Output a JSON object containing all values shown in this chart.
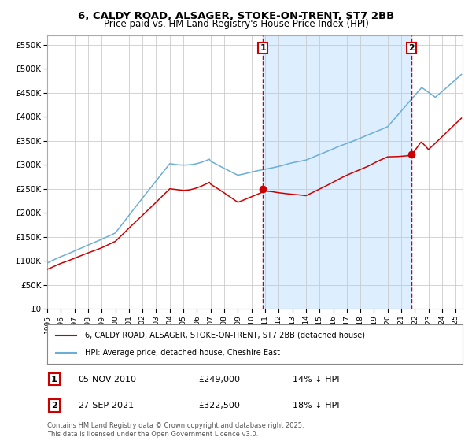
{
  "title_line1": "6, CALDY ROAD, ALSAGER, STOKE-ON-TRENT, ST7 2BB",
  "title_line2": "Price paid vs. HM Land Registry's House Price Index (HPI)",
  "ylabel_ticks": [
    "£0",
    "£50K",
    "£100K",
    "£150K",
    "£200K",
    "£250K",
    "£300K",
    "£350K",
    "£400K",
    "£450K",
    "£500K",
    "£550K"
  ],
  "ytick_values": [
    0,
    50000,
    100000,
    150000,
    200000,
    250000,
    300000,
    350000,
    400000,
    450000,
    500000,
    550000
  ],
  "year_start": 1995,
  "year_end": 2025,
  "hpi_color": "#6baed6",
  "property_color": "#cc0000",
  "sale1_date": "05-NOV-2010",
  "sale1_price": 249000,
  "sale1_label": "1",
  "sale1_x": 2010.84,
  "sale2_date": "27-SEP-2021",
  "sale2_price": 322500,
  "sale2_label": "2",
  "sale2_x": 2021.74,
  "legend_label_property": "6, CALDY ROAD, ALSAGER, STOKE-ON-TRENT, ST7 2BB (detached house)",
  "legend_label_hpi": "HPI: Average price, detached house, Cheshire East",
  "sale1_pct": "14% ↓ HPI",
  "sale2_pct": "18% ↓ HPI",
  "sale1_price_str": "£249,000",
  "sale2_price_str": "£322,500",
  "footer": "Contains HM Land Registry data © Crown copyright and database right 2025.\nThis data is licensed under the Open Government Licence v3.0.",
  "background_color": "#ffffff",
  "shaded_region_color": "#ddeeff",
  "grid_color": "#cccccc",
  "xlim": [
    1995,
    2025.5
  ],
  "ylim": [
    0,
    570000
  ]
}
